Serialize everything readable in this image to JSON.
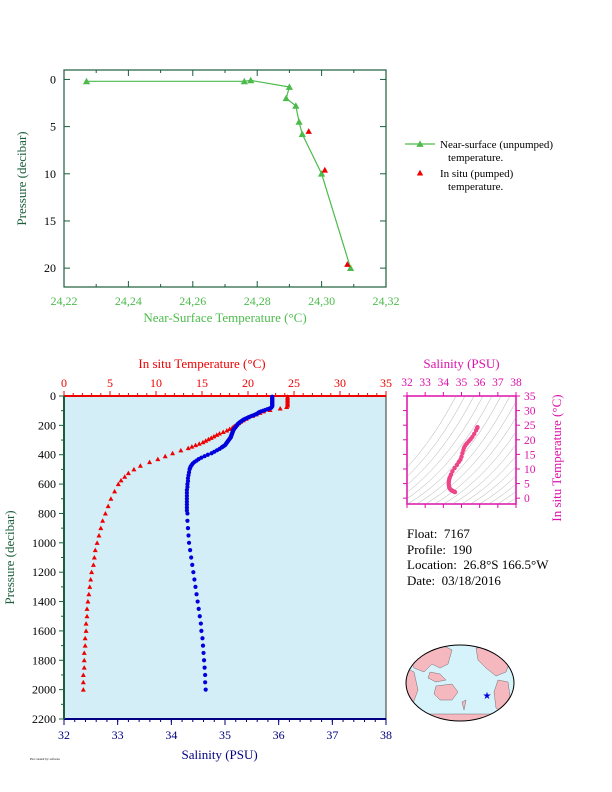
{
  "colors": {
    "green": "#4cbb4c",
    "red": "#ee0000",
    "blue": "#0000dd",
    "magenta": "#dd11aa",
    "pink": "#ee4488",
    "panel_bg": "#d4eef8",
    "dark_green": "#1b5e3b",
    "navy": "#000080",
    "land": "#f5b8bf",
    "ocean": "#d6f2fa"
  },
  "info": {
    "float_label": "Float:",
    "float": "7167",
    "profile_label": "Profile:",
    "profile": "190",
    "location_label": "Location:",
    "location": "26.8°S  166.5°W",
    "date_label": "Date:",
    "date": "03/18/2016"
  },
  "footnote": "Plot created by: software",
  "chart_data": [
    {
      "id": "near_surface",
      "type": "line",
      "xlabel": "Near-Surface Temperature (°C)",
      "ylabel": "Pressure (decibar)",
      "xlim": [
        24.22,
        24.32
      ],
      "ylim": [
        22,
        -1
      ],
      "x_ticks": [
        "24,22",
        "24,24",
        "24,26",
        "24,28",
        "24,30",
        "24,32"
      ],
      "y_ticks": [
        "0",
        "5",
        "10",
        "15",
        "20"
      ],
      "legend_position": "right",
      "series": [
        {
          "name": "Near-surface (unpumped) temperature.",
          "marker": "triangle",
          "points": [
            [
              24.227,
              0.2
            ],
            [
              24.276,
              0.2
            ],
            [
              24.278,
              0.1
            ],
            [
              24.29,
              0.8
            ],
            [
              24.289,
              2.0
            ],
            [
              24.292,
              2.8
            ],
            [
              24.293,
              4.5
            ],
            [
              24.294,
              5.8
            ],
            [
              24.3,
              10.0
            ],
            [
              24.309,
              20.0
            ]
          ]
        },
        {
          "name": "In situ (pumped) temperature.",
          "marker": "triangle",
          "points": [
            [
              24.296,
              5.5
            ],
            [
              24.301,
              9.6
            ],
            [
              24.308,
              19.6
            ]
          ]
        }
      ]
    },
    {
      "id": "profile",
      "type": "scatter",
      "top_axis_label": "In situ Temperature (°C)",
      "bottom_axis_label": "Salinity (PSU)",
      "ylabel": "Pressure (decibar)",
      "temp_lim": [
        0,
        35
      ],
      "sal_lim": [
        32,
        38
      ],
      "ylim": [
        2200,
        0
      ],
      "temp_ticks": [
        "0",
        "5",
        "10",
        "15",
        "20",
        "25",
        "30",
        "35"
      ],
      "sal_ticks": [
        "32",
        "33",
        "34",
        "35",
        "36",
        "37",
        "38"
      ],
      "y_ticks": [
        "0",
        "200",
        "400",
        "600",
        "800",
        "1000",
        "1200",
        "1400",
        "1600",
        "1800",
        "2000",
        "2200"
      ],
      "series": [
        {
          "name": "In situ Temperature",
          "marker": "triangle",
          "points": [
            [
              24.3,
              5
            ],
            [
              24.3,
              15
            ],
            [
              24.3,
              25
            ],
            [
              24.3,
              35
            ],
            [
              24.3,
              45
            ],
            [
              24.3,
              55
            ],
            [
              24.3,
              65
            ],
            [
              24.2,
              75
            ],
            [
              23.5,
              85
            ],
            [
              22.4,
              95
            ],
            [
              21.7,
              105
            ],
            [
              21.3,
              115
            ],
            [
              20.9,
              125
            ],
            [
              20.5,
              135
            ],
            [
              20.0,
              145
            ],
            [
              19.8,
              155
            ],
            [
              19.5,
              165
            ],
            [
              19.2,
              175
            ],
            [
              19.0,
              185
            ],
            [
              18.8,
              195
            ],
            [
              18.5,
              205
            ],
            [
              18.3,
              215
            ],
            [
              18.0,
              225
            ],
            [
              17.7,
              235
            ],
            [
              17.3,
              245
            ],
            [
              16.9,
              255
            ],
            [
              16.6,
              265
            ],
            [
              16.3,
              275
            ],
            [
              16.0,
              285
            ],
            [
              15.7,
              295
            ],
            [
              15.4,
              305
            ],
            [
              15.1,
              315
            ],
            [
              14.7,
              325
            ],
            [
              14.3,
              335
            ],
            [
              13.9,
              345
            ],
            [
              13.5,
              355
            ],
            [
              12.7,
              370
            ],
            [
              11.8,
              390
            ],
            [
              11.0,
              410
            ],
            [
              10.2,
              430
            ],
            [
              9.3,
              450
            ],
            [
              8.3,
              475
            ],
            [
              7.6,
              500
            ],
            [
              7.0,
              525
            ],
            [
              6.6,
              550
            ],
            [
              6.2,
              575
            ],
            [
              5.9,
              600
            ],
            [
              5.5,
              650
            ],
            [
              5.1,
              700
            ],
            [
              4.8,
              750
            ],
            [
              4.5,
              800
            ],
            [
              4.2,
              850
            ],
            [
              4.0,
              900
            ],
            [
              3.8,
              950
            ],
            [
              3.6,
              1000
            ],
            [
              3.4,
              1050
            ],
            [
              3.3,
              1100
            ],
            [
              3.2,
              1150
            ],
            [
              3.0,
              1200
            ],
            [
              2.9,
              1250
            ],
            [
              2.8,
              1300
            ],
            [
              2.7,
              1350
            ],
            [
              2.6,
              1400
            ],
            [
              2.5,
              1450
            ],
            [
              2.5,
              1500
            ],
            [
              2.4,
              1550
            ],
            [
              2.4,
              1600
            ],
            [
              2.3,
              1650
            ],
            [
              2.3,
              1700
            ],
            [
              2.2,
              1750
            ],
            [
              2.2,
              1800
            ],
            [
              2.2,
              1850
            ],
            [
              2.1,
              1900
            ],
            [
              2.1,
              1950
            ],
            [
              2.1,
              2000
            ]
          ]
        },
        {
          "name": "Salinity",
          "marker": "circle",
          "points": [
            [
              35.88,
              5
            ],
            [
              35.88,
              10
            ],
            [
              35.88,
              15
            ],
            [
              35.88,
              20
            ],
            [
              35.88,
              25
            ],
            [
              35.88,
              30
            ],
            [
              35.88,
              35
            ],
            [
              35.88,
              40
            ],
            [
              35.88,
              45
            ],
            [
              35.88,
              50
            ],
            [
              35.88,
              55
            ],
            [
              35.88,
              60
            ],
            [
              35.88,
              65
            ],
            [
              35.88,
              70
            ],
            [
              35.87,
              75
            ],
            [
              35.86,
              80
            ],
            [
              35.83,
              85
            ],
            [
              35.79,
              90
            ],
            [
              35.75,
              95
            ],
            [
              35.71,
              100
            ],
            [
              35.67,
              105
            ],
            [
              35.64,
              110
            ],
            [
              35.62,
              115
            ],
            [
              35.6,
              120
            ],
            [
              35.57,
              125
            ],
            [
              35.54,
              130
            ],
            [
              35.5,
              135
            ],
            [
              35.47,
              140
            ],
            [
              35.44,
              145
            ],
            [
              35.41,
              150
            ],
            [
              35.38,
              155
            ],
            [
              35.35,
              160
            ],
            [
              35.33,
              165
            ],
            [
              35.31,
              170
            ],
            [
              35.29,
              175
            ],
            [
              35.27,
              180
            ],
            [
              35.26,
              185
            ],
            [
              35.24,
              190
            ],
            [
              35.23,
              195
            ],
            [
              35.22,
              200
            ],
            [
              35.21,
              205
            ],
            [
              35.2,
              210
            ],
            [
              35.19,
              215
            ],
            [
              35.18,
              220
            ],
            [
              35.17,
              225
            ],
            [
              35.16,
              230
            ],
            [
              35.15,
              235
            ],
            [
              35.15,
              240
            ],
            [
              35.14,
              245
            ],
            [
              35.14,
              250
            ],
            [
              35.13,
              255
            ],
            [
              35.13,
              260
            ],
            [
              35.12,
              265
            ],
            [
              35.12,
              270
            ],
            [
              35.11,
              275
            ],
            [
              35.11,
              280
            ],
            [
              35.1,
              285
            ],
            [
              35.09,
              290
            ],
            [
              35.08,
              295
            ],
            [
              35.07,
              300
            ],
            [
              35.06,
              305
            ],
            [
              35.05,
              310
            ],
            [
              35.04,
              315
            ],
            [
              35.03,
              320
            ],
            [
              35.02,
              325
            ],
            [
              35.01,
              330
            ],
            [
              35.0,
              335
            ],
            [
              34.98,
              340
            ],
            [
              34.96,
              345
            ],
            [
              34.94,
              350
            ],
            [
              34.9,
              360
            ],
            [
              34.85,
              370
            ],
            [
              34.8,
              380
            ],
            [
              34.75,
              390
            ],
            [
              34.68,
              400
            ],
            [
              34.62,
              410
            ],
            [
              34.56,
              420
            ],
            [
              34.51,
              430
            ],
            [
              34.47,
              440
            ],
            [
              34.43,
              450
            ],
            [
              34.4,
              460
            ],
            [
              34.38,
              470
            ],
            [
              34.36,
              480
            ],
            [
              34.35,
              490
            ],
            [
              34.34,
              500
            ],
            [
              34.33,
              520
            ],
            [
              34.32,
              540
            ],
            [
              34.31,
              560
            ],
            [
              34.31,
              580
            ],
            [
              34.3,
              600
            ],
            [
              34.3,
              620
            ],
            [
              34.29,
              640
            ],
            [
              34.29,
              660
            ],
            [
              34.29,
              680
            ],
            [
              34.29,
              700
            ],
            [
              34.29,
              720
            ],
            [
              34.29,
              740
            ],
            [
              34.29,
              760
            ],
            [
              34.29,
              780
            ],
            [
              34.3,
              800
            ],
            [
              34.3,
              850
            ],
            [
              34.31,
              900
            ],
            [
              34.32,
              950
            ],
            [
              34.33,
              1000
            ],
            [
              34.35,
              1050
            ],
            [
              34.37,
              1100
            ],
            [
              34.39,
              1150
            ],
            [
              34.41,
              1200
            ],
            [
              34.43,
              1250
            ],
            [
              34.45,
              1300
            ],
            [
              34.47,
              1350
            ],
            [
              34.49,
              1400
            ],
            [
              34.51,
              1450
            ],
            [
              34.53,
              1500
            ],
            [
              34.55,
              1550
            ],
            [
              34.56,
              1600
            ],
            [
              34.58,
              1650
            ],
            [
              34.59,
              1700
            ],
            [
              34.6,
              1750
            ],
            [
              34.61,
              1800
            ],
            [
              34.62,
              1850
            ],
            [
              34.63,
              1900
            ],
            [
              34.63,
              1950
            ],
            [
              34.64,
              2000
            ]
          ]
        }
      ]
    },
    {
      "id": "ts_diagram",
      "type": "scatter",
      "top_axis_label": "Salinity (PSU)",
      "right_axis_label": "In situ Temperature (°C)",
      "xlim": [
        32,
        38
      ],
      "ylim": [
        -2,
        35
      ],
      "x_ticks": [
        "32",
        "33",
        "34",
        "35",
        "36",
        "37",
        "38"
      ],
      "y_ticks": [
        "0",
        "5",
        "10",
        "15",
        "20",
        "25",
        "30",
        "35"
      ],
      "series": [
        {
          "name": "T-S",
          "marker": "circle",
          "points": [
            [
              35.88,
              24.3
            ],
            [
              35.86,
              24.0
            ],
            [
              35.8,
              23.2
            ],
            [
              35.7,
              22.0
            ],
            [
              35.6,
              21.0
            ],
            [
              35.5,
              20.2
            ],
            [
              35.4,
              19.5
            ],
            [
              35.3,
              18.8
            ],
            [
              35.22,
              18.2
            ],
            [
              35.15,
              17.4
            ],
            [
              35.1,
              16.5
            ],
            [
              35.05,
              15.4
            ],
            [
              35.0,
              14.2
            ],
            [
              34.94,
              13.2
            ],
            [
              34.85,
              12.4
            ],
            [
              34.75,
              11.4
            ],
            [
              34.62,
              10.3
            ],
            [
              34.5,
              9.2
            ],
            [
              34.42,
              8.1
            ],
            [
              34.36,
              7.2
            ],
            [
              34.33,
              6.6
            ],
            [
              34.31,
              6.0
            ],
            [
              34.3,
              5.4
            ],
            [
              34.3,
              4.8
            ],
            [
              34.31,
              4.2
            ],
            [
              34.33,
              3.6
            ],
            [
              34.37,
              3.2
            ],
            [
              34.41,
              2.9
            ],
            [
              34.45,
              2.7
            ],
            [
              34.5,
              2.5
            ],
            [
              34.55,
              2.4
            ],
            [
              34.6,
              2.2
            ],
            [
              34.64,
              2.1
            ]
          ]
        }
      ]
    }
  ]
}
